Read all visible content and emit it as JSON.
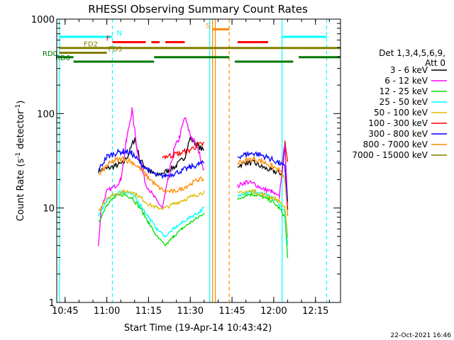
{
  "title": "RHESSI Observing Summary Count Rates",
  "xlabel": "Start Time (19-Apr-14 10:43:42)",
  "ylabel_main": "Count Rate (s",
  "ylabel_sup": "-1",
  "ylabel_mid": " detector",
  "ylabel_end": ")",
  "footer_date": "22-Oct-2021 16:46",
  "legend_header": [
    "Det 1,3,4,5,6,9,",
    "Att 0"
  ],
  "chart_data": {
    "type": "line",
    "title": "RHESSI Observing Summary Count Rates",
    "xlabel": "Start Time (19-Apr-14 10:43:42)",
    "ylabel": "Count Rate (s-1 detector-1)",
    "yscale": "log",
    "ylim": [
      1,
      1000
    ],
    "xlim": [
      "10:42",
      "12:24"
    ],
    "x_ticks": [
      "10:45",
      "11:00",
      "11:15",
      "11:30",
      "11:45",
      "12:00",
      "12:15"
    ],
    "y_ticks": [
      "1",
      "10",
      "100",
      "1000"
    ],
    "legend_position": "right",
    "series": [
      {
        "name": "3 - 6 keV",
        "color": "#000000",
        "points": [
          [
            "10:57",
            25
          ],
          [
            "11:00",
            26
          ],
          [
            "11:03",
            28
          ],
          [
            "11:06",
            30
          ],
          [
            "11:08",
            38
          ],
          [
            "11:10",
            55
          ],
          [
            "11:12",
            32
          ],
          [
            "11:15",
            25
          ],
          [
            "11:18",
            22
          ],
          [
            "11:22",
            25
          ],
          [
            "11:25",
            28
          ],
          [
            "11:28",
            35
          ],
          [
            "11:30",
            55
          ],
          [
            "11:33",
            45
          ],
          [
            "11:35",
            40
          ],
          [
            "11:47",
            28
          ],
          [
            "11:50",
            30
          ],
          [
            "11:53",
            30
          ],
          [
            "11:56",
            27
          ],
          [
            "11:59",
            25
          ],
          [
            "12:01",
            24
          ],
          [
            "12:03",
            23
          ],
          [
            "12:04",
            48
          ],
          [
            "12:05",
            10
          ]
        ]
      },
      {
        "name": "6 - 12 keV",
        "color": "#ff00ff",
        "points": [
          [
            "10:57",
            4
          ],
          [
            "10:58",
            10
          ],
          [
            "11:00",
            15
          ],
          [
            "11:03",
            17
          ],
          [
            "11:05",
            20
          ],
          [
            "11:07",
            50
          ],
          [
            "11:09",
            110
          ],
          [
            "11:11",
            40
          ],
          [
            "11:14",
            18
          ],
          [
            "11:17",
            13
          ],
          [
            "11:20",
            10
          ],
          [
            "11:22",
            20
          ],
          [
            "11:24",
            40
          ],
          [
            "11:26",
            55
          ],
          [
            "11:28",
            90
          ],
          [
            "11:30",
            60
          ],
          [
            "11:33",
            40
          ],
          [
            "11:35",
            25
          ],
          [
            "11:47",
            17
          ],
          [
            "11:50",
            19
          ],
          [
            "11:53",
            18
          ],
          [
            "11:56",
            16
          ],
          [
            "11:59",
            15
          ],
          [
            "12:02",
            13
          ],
          [
            "12:04",
            50
          ],
          [
            "12:05",
            10
          ]
        ]
      },
      {
        "name": "12 - 25 keV",
        "color": "#00dd00",
        "points": [
          [
            "10:57",
            7
          ],
          [
            "11:00",
            11
          ],
          [
            "11:03",
            13
          ],
          [
            "11:06",
            14
          ],
          [
            "11:09",
            13
          ],
          [
            "11:12",
            10
          ],
          [
            "11:15",
            7
          ],
          [
            "11:18",
            5
          ],
          [
            "11:21",
            4
          ],
          [
            "11:24",
            5
          ],
          [
            "11:27",
            6
          ],
          [
            "11:30",
            7
          ],
          [
            "11:33",
            8
          ],
          [
            "11:35",
            9
          ],
          [
            "11:47",
            12
          ],
          [
            "11:50",
            14
          ],
          [
            "11:53",
            14
          ],
          [
            "11:56",
            13
          ],
          [
            "11:59",
            12
          ],
          [
            "12:02",
            10
          ],
          [
            "12:04",
            8
          ],
          [
            "12:05",
            3
          ]
        ]
      },
      {
        "name": "25 - 50 keV",
        "color": "#00ffff",
        "points": [
          [
            "10:57",
            8
          ],
          [
            "11:00",
            12
          ],
          [
            "11:03",
            14
          ],
          [
            "11:06",
            15
          ],
          [
            "11:09",
            14
          ],
          [
            "11:12",
            11
          ],
          [
            "11:15",
            8
          ],
          [
            "11:18",
            6
          ],
          [
            "11:21",
            5
          ],
          [
            "11:24",
            6
          ],
          [
            "11:27",
            7
          ],
          [
            "11:30",
            8
          ],
          [
            "11:33",
            9
          ],
          [
            "11:35",
            10
          ],
          [
            "11:47",
            13
          ],
          [
            "11:50",
            15
          ],
          [
            "11:53",
            15
          ],
          [
            "11:56",
            14
          ],
          [
            "11:59",
            13
          ],
          [
            "12:02",
            11
          ],
          [
            "12:04",
            9
          ],
          [
            "12:05",
            4
          ]
        ]
      },
      {
        "name": "50 - 100 keV",
        "color": "#ddbb00",
        "points": [
          [
            "10:57",
            9
          ],
          [
            "11:00",
            13
          ],
          [
            "11:03",
            14
          ],
          [
            "11:06",
            15
          ],
          [
            "11:09",
            15
          ],
          [
            "11:12",
            13
          ],
          [
            "11:15",
            11
          ],
          [
            "11:18",
            10
          ],
          [
            "11:21",
            10
          ],
          [
            "11:24",
            11
          ],
          [
            "11:27",
            12
          ],
          [
            "11:30",
            13
          ],
          [
            "11:33",
            14
          ],
          [
            "11:35",
            15
          ],
          [
            "11:47",
            14
          ],
          [
            "11:50",
            15
          ],
          [
            "11:53",
            15
          ],
          [
            "11:56",
            14
          ],
          [
            "11:59",
            13
          ],
          [
            "12:02",
            12
          ],
          [
            "12:04",
            10
          ],
          [
            "12:05",
            5
          ]
        ]
      },
      {
        "name": "100 - 300 keV",
        "color": "#ff0000",
        "points": [
          [
            "11:20",
            35
          ],
          [
            "11:23",
            36
          ],
          [
            "11:26",
            38
          ],
          [
            "11:29",
            40
          ],
          [
            "11:32",
            45
          ],
          [
            "11:35",
            48
          ],
          [
            "12:04",
            50
          ],
          [
            "12:05",
            30
          ]
        ]
      },
      {
        "name": "300 - 800 keV",
        "color": "#0000ff",
        "points": [
          [
            "10:57",
            25
          ],
          [
            "11:00",
            35
          ],
          [
            "11:03",
            38
          ],
          [
            "11:06",
            40
          ],
          [
            "11:09",
            38
          ],
          [
            "11:12",
            30
          ],
          [
            "11:15",
            25
          ],
          [
            "11:18",
            22
          ],
          [
            "11:21",
            22
          ],
          [
            "11:24",
            23
          ],
          [
            "11:27",
            25
          ],
          [
            "11:30",
            27
          ],
          [
            "11:33",
            29
          ],
          [
            "11:35",
            30
          ],
          [
            "11:47",
            35
          ],
          [
            "11:50",
            37
          ],
          [
            "11:53",
            38
          ],
          [
            "11:56",
            36
          ],
          [
            "11:59",
            33
          ],
          [
            "12:02",
            30
          ],
          [
            "12:04",
            27
          ],
          [
            "12:05",
            12
          ]
        ]
      },
      {
        "name": "800 - 7000 keV",
        "color": "#ff8800",
        "points": [
          [
            "10:57",
            22
          ],
          [
            "11:00",
            28
          ],
          [
            "11:03",
            32
          ],
          [
            "11:06",
            33
          ],
          [
            "11:09",
            31
          ],
          [
            "11:12",
            26
          ],
          [
            "11:15",
            21
          ],
          [
            "11:18",
            17
          ],
          [
            "11:21",
            15
          ],
          [
            "11:24",
            15
          ],
          [
            "11:27",
            16
          ],
          [
            "11:30",
            18
          ],
          [
            "11:33",
            20
          ],
          [
            "11:35",
            20
          ],
          [
            "11:47",
            30
          ],
          [
            "11:50",
            32
          ],
          [
            "11:53",
            33
          ],
          [
            "11:56",
            31
          ],
          [
            "11:59",
            28
          ],
          [
            "12:02",
            25
          ],
          [
            "12:04",
            20
          ],
          [
            "12:05",
            8
          ]
        ]
      },
      {
        "name": "7000 - 15000 keV",
        "color": "#808000",
        "points": []
      }
    ],
    "flag_bars": [
      {
        "label": "N",
        "color": "#00ffff",
        "value": 650,
        "segments": [
          [
            "10:43",
            "11:02"
          ],
          [
            "12:03",
            "12:19"
          ]
        ]
      },
      {
        "label": "F",
        "color": "#ff0000",
        "value": 570,
        "segments": [
          [
            "11:02",
            "11:14"
          ],
          [
            "11:16",
            "11:19"
          ],
          [
            "11:21",
            "11:28"
          ],
          [
            "11:47",
            "11:58"
          ]
        ]
      },
      {
        "label": "S",
        "color": "#ff8800",
        "value": 780,
        "segments": [
          [
            "11:38",
            "11:44"
          ]
        ]
      },
      {
        "label": "FD2",
        "color": "#808000",
        "value": 495,
        "segments": [
          [
            "10:43",
            "12:24"
          ]
        ]
      },
      {
        "label": "FD3",
        "color": "#808000",
        "value": 440,
        "segments": [
          [
            "10:43",
            "11:00"
          ]
        ]
      },
      {
        "label": "RD0",
        "color": "#007700",
        "value": 395,
        "segments": [
          [
            "10:43",
            "10:48"
          ],
          [
            "11:17",
            "11:44"
          ],
          [
            "12:09",
            "12:24"
          ]
        ]
      },
      {
        "label": "RD6",
        "color": "#007700",
        "value": 355,
        "segments": [
          [
            "10:48",
            "11:17"
          ],
          [
            "11:46",
            "12:07"
          ]
        ]
      }
    ],
    "vertical_lines": [
      {
        "x": "10:43",
        "color": "#00ffff",
        "style": "solid"
      },
      {
        "x": "11:02",
        "color": "#00ffff",
        "style": "dashed"
      },
      {
        "x": "11:38",
        "color": "#ff8800",
        "style": "solid"
      },
      {
        "x": "11:39",
        "color": "#ff8800",
        "style": "solid"
      },
      {
        "x": "11:37",
        "color": "#00ffff",
        "style": "solid"
      },
      {
        "x": "11:44",
        "color": "#ff8800",
        "style": "dashed"
      },
      {
        "x": "12:03",
        "color": "#00ffff",
        "style": "solid"
      },
      {
        "x": "12:19",
        "color": "#00ffff",
        "style": "dashed"
      }
    ]
  }
}
